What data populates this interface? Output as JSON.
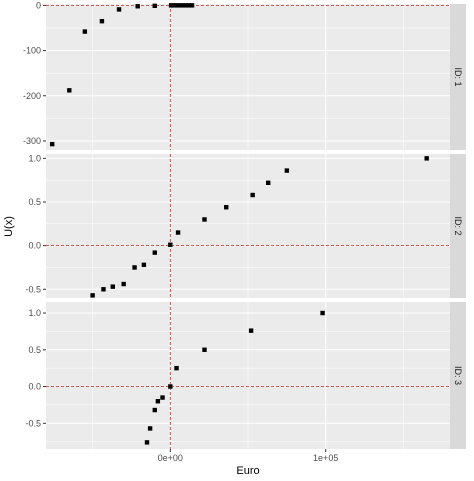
{
  "chart_data": {
    "type": "scatter",
    "facets": "vertical",
    "xlabel": "Euro",
    "ylabel": "U(x)",
    "x_ticks": [
      {
        "value": 0,
        "label": "0e+00"
      },
      {
        "value": 100000,
        "label": "1e+05"
      }
    ],
    "xlim": [
      -80000,
      180000
    ],
    "reference_lines": {
      "x": 0,
      "y": 0,
      "color": "#cc1f1f",
      "style": "dashed"
    },
    "colors": {
      "panel_bg": "#ebebeb",
      "grid": "#ffffff",
      "point": "#000000",
      "strip_bg": "#d9d9d9"
    },
    "panels": [
      {
        "id": "ID: 1",
        "ylim": [
          -320,
          3
        ],
        "y_ticks": [
          {
            "value": 0,
            "label": "0"
          },
          {
            "value": -100,
            "label": "-100"
          },
          {
            "value": -200,
            "label": "-200"
          },
          {
            "value": -300,
            "label": "-300"
          }
        ],
        "points": [
          {
            "x": -76000,
            "y": -307
          },
          {
            "x": -65000,
            "y": -188
          },
          {
            "x": -55000,
            "y": -58
          },
          {
            "x": -44000,
            "y": -35
          },
          {
            "x": -33000,
            "y": -9
          },
          {
            "x": -21000,
            "y": -2
          },
          {
            "x": -10000,
            "y": -1
          },
          {
            "x": 500,
            "y": 0
          },
          {
            "x": 2000,
            "y": 0
          },
          {
            "x": 4000,
            "y": 0
          },
          {
            "x": 6000,
            "y": 0
          },
          {
            "x": 8000,
            "y": 0
          },
          {
            "x": 10000,
            "y": 0
          },
          {
            "x": 12000,
            "y": 0
          },
          {
            "x": 14000,
            "y": 0
          }
        ]
      },
      {
        "id": "ID: 2",
        "ylim": [
          -0.6,
          1.05
        ],
        "y_ticks": [
          {
            "value": 1.0,
            "label": "1.0"
          },
          {
            "value": 0.5,
            "label": "0.5"
          },
          {
            "value": 0.0,
            "label": "0.0"
          },
          {
            "value": -0.5,
            "label": "-0.5"
          }
        ],
        "points": [
          {
            "x": -50000,
            "y": -0.57
          },
          {
            "x": -43000,
            "y": -0.5
          },
          {
            "x": -37000,
            "y": -0.47
          },
          {
            "x": -30000,
            "y": -0.44
          },
          {
            "x": -23000,
            "y": -0.25
          },
          {
            "x": -17000,
            "y": -0.22
          },
          {
            "x": -10000,
            "y": -0.08
          },
          {
            "x": 0,
            "y": 0.01
          },
          {
            "x": 5000,
            "y": 0.15
          },
          {
            "x": 22000,
            "y": 0.3
          },
          {
            "x": 36000,
            "y": 0.44
          },
          {
            "x": 53000,
            "y": 0.58
          },
          {
            "x": 63000,
            "y": 0.72
          },
          {
            "x": 75000,
            "y": 0.86
          },
          {
            "x": 165000,
            "y": 1.0
          }
        ]
      },
      {
        "id": "ID: 3",
        "ylim": [
          -0.85,
          1.15
        ],
        "y_ticks": [
          {
            "value": 1.0,
            "label": "1.0"
          },
          {
            "value": 0.5,
            "label": "0.5"
          },
          {
            "value": 0.0,
            "label": "0.0"
          },
          {
            "value": -0.5,
            "label": "-0.5"
          }
        ],
        "points": [
          {
            "x": -15000,
            "y": -0.76
          },
          {
            "x": -13000,
            "y": -0.57
          },
          {
            "x": -10000,
            "y": -0.32
          },
          {
            "x": -8000,
            "y": -0.2
          },
          {
            "x": -5000,
            "y": -0.15
          },
          {
            "x": 0,
            "y": 0.0
          },
          {
            "x": 4000,
            "y": 0.25
          },
          {
            "x": 22000,
            "y": 0.5
          },
          {
            "x": 52000,
            "y": 0.76
          },
          {
            "x": 98000,
            "y": 1.0
          }
        ]
      }
    ]
  }
}
